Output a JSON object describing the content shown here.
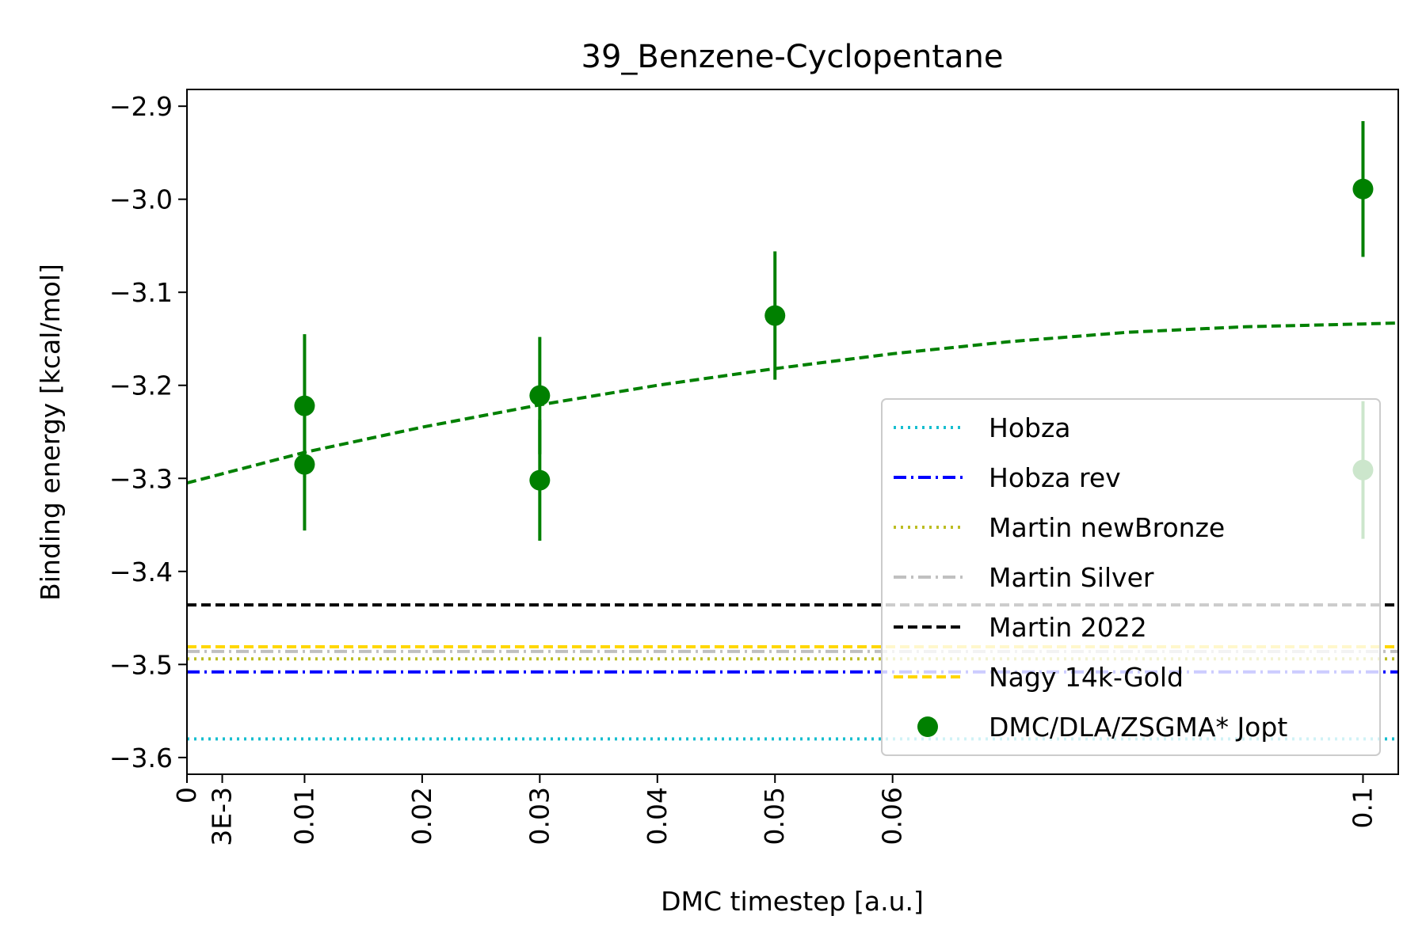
{
  "chart_data": {
    "type": "scatter",
    "title": "39_Benzene-Cyclopentane",
    "xlabel": "DMC timestep [a.u.]",
    "ylabel": "Binding energy [kcal/mol]",
    "xlim": [
      0,
      0.103
    ],
    "ylim": [
      -3.618,
      -2.882
    ],
    "x_ticks": [
      {
        "value": 0,
        "label": "0"
      },
      {
        "value": 0.003,
        "label": "3E-3"
      },
      {
        "value": 0.01,
        "label": "0.01"
      },
      {
        "value": 0.02,
        "label": "0.02"
      },
      {
        "value": 0.03,
        "label": "0.03"
      },
      {
        "value": 0.04,
        "label": "0.04"
      },
      {
        "value": 0.05,
        "label": "0.05"
      },
      {
        "value": 0.06,
        "label": "0.06"
      },
      {
        "value": 0.1,
        "label": "0.1"
      }
    ],
    "y_ticks": [
      {
        "value": -2.9,
        "label": "−2.9"
      },
      {
        "value": -3.0,
        "label": "−3.0"
      },
      {
        "value": -3.1,
        "label": "−3.1"
      },
      {
        "value": -3.2,
        "label": "−3.2"
      },
      {
        "value": -3.3,
        "label": "−3.3"
      },
      {
        "value": -3.4,
        "label": "−3.4"
      },
      {
        "value": -3.5,
        "label": "−3.5"
      },
      {
        "value": -3.6,
        "label": "−3.6"
      }
    ],
    "grid": false,
    "legend_position": "lower-right",
    "reference_lines": [
      {
        "name": "Hobza",
        "y": -3.58,
        "color": "#17becf",
        "dash": "3,6"
      },
      {
        "name": "Hobza rev",
        "y": -3.508,
        "color": "#0000ff",
        "dash": "16,6,3,6"
      },
      {
        "name": "Martin newBronze",
        "y": -3.494,
        "color": "#bcbd22",
        "dash": "3,6"
      },
      {
        "name": "Martin Silver",
        "y": -3.486,
        "color": "#c0c0c0",
        "dash": "16,6,3,6"
      },
      {
        "name": "Martin 2022",
        "y": -3.436,
        "color": "#000000",
        "dash": "12,6"
      },
      {
        "name": "Nagy 14k-Gold",
        "y": -3.481,
        "color": "#ffd700",
        "dash": "12,6"
      }
    ],
    "series": [
      {
        "name": "DMC/DLA/ZSGMA* Jopt",
        "color": "#008000",
        "points": [
          {
            "x": 0.01,
            "y": -3.222,
            "err": 0.077
          },
          {
            "x": 0.01,
            "y": -3.285,
            "err": 0.071
          },
          {
            "x": 0.03,
            "y": -3.211,
            "err": 0.063
          },
          {
            "x": 0.03,
            "y": -3.302,
            "err": 0.065
          },
          {
            "x": 0.05,
            "y": -3.125,
            "err": 0.069
          },
          {
            "x": 0.1,
            "y": -2.989,
            "err": 0.073
          },
          {
            "x": 0.1,
            "y": -3.291,
            "err": 0.074
          }
        ]
      }
    ],
    "fit": {
      "color": "#008000",
      "dash": "12,6",
      "points": [
        {
          "x": 0.0,
          "y": -3.305
        },
        {
          "x": 0.01,
          "y": -3.272
        },
        {
          "x": 0.02,
          "y": -3.245
        },
        {
          "x": 0.03,
          "y": -3.221
        },
        {
          "x": 0.04,
          "y": -3.2
        },
        {
          "x": 0.05,
          "y": -3.182
        },
        {
          "x": 0.06,
          "y": -3.166
        },
        {
          "x": 0.07,
          "y": -3.153
        },
        {
          "x": 0.08,
          "y": -3.143
        },
        {
          "x": 0.09,
          "y": -3.137
        },
        {
          "x": 0.1,
          "y": -3.134
        },
        {
          "x": 0.103,
          "y": -3.133
        }
      ]
    }
  }
}
